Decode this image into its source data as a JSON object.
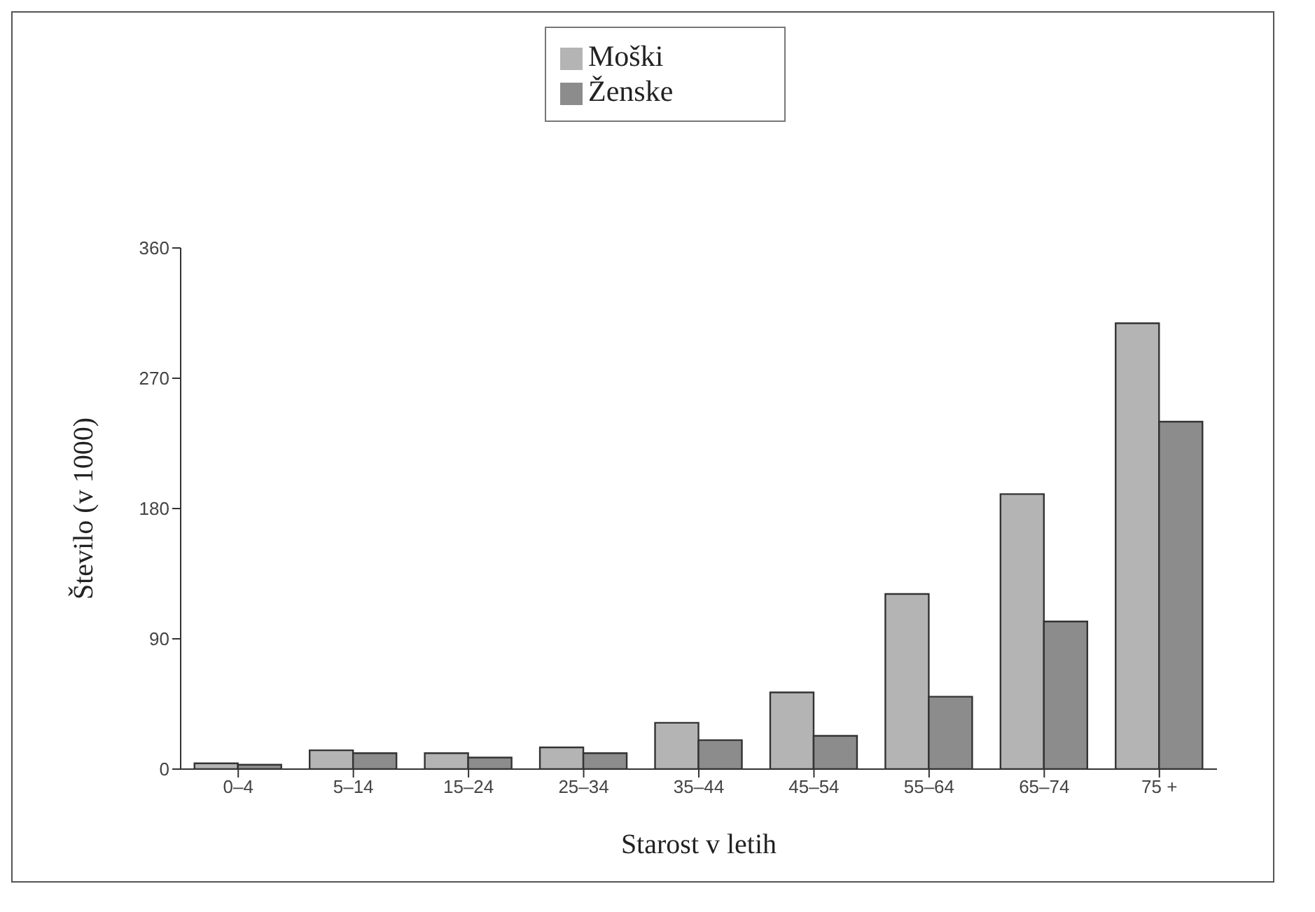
{
  "chart_data": {
    "type": "bar",
    "xlabel": "Starost v letih",
    "ylabel": "Število (v 1000)",
    "categories": [
      "0–4",
      "5–14",
      "15–24",
      "25–34",
      "35–44",
      "45–54",
      "55–64",
      "65–74",
      "75 +"
    ],
    "series": [
      {
        "name": "Moški",
        "color": "#b4b4b4",
        "values": [
          4,
          13,
          11,
          15,
          32,
          53,
          121,
          190,
          308
        ]
      },
      {
        "name": "Ženske",
        "color": "#8c8c8c",
        "values": [
          3,
          11,
          8,
          11,
          20,
          23,
          50,
          102,
          240
        ]
      }
    ],
    "ylim": [
      0,
      360
    ],
    "yticks": [
      0,
      90,
      180,
      270,
      360
    ],
    "grid": false,
    "legend": "top"
  }
}
